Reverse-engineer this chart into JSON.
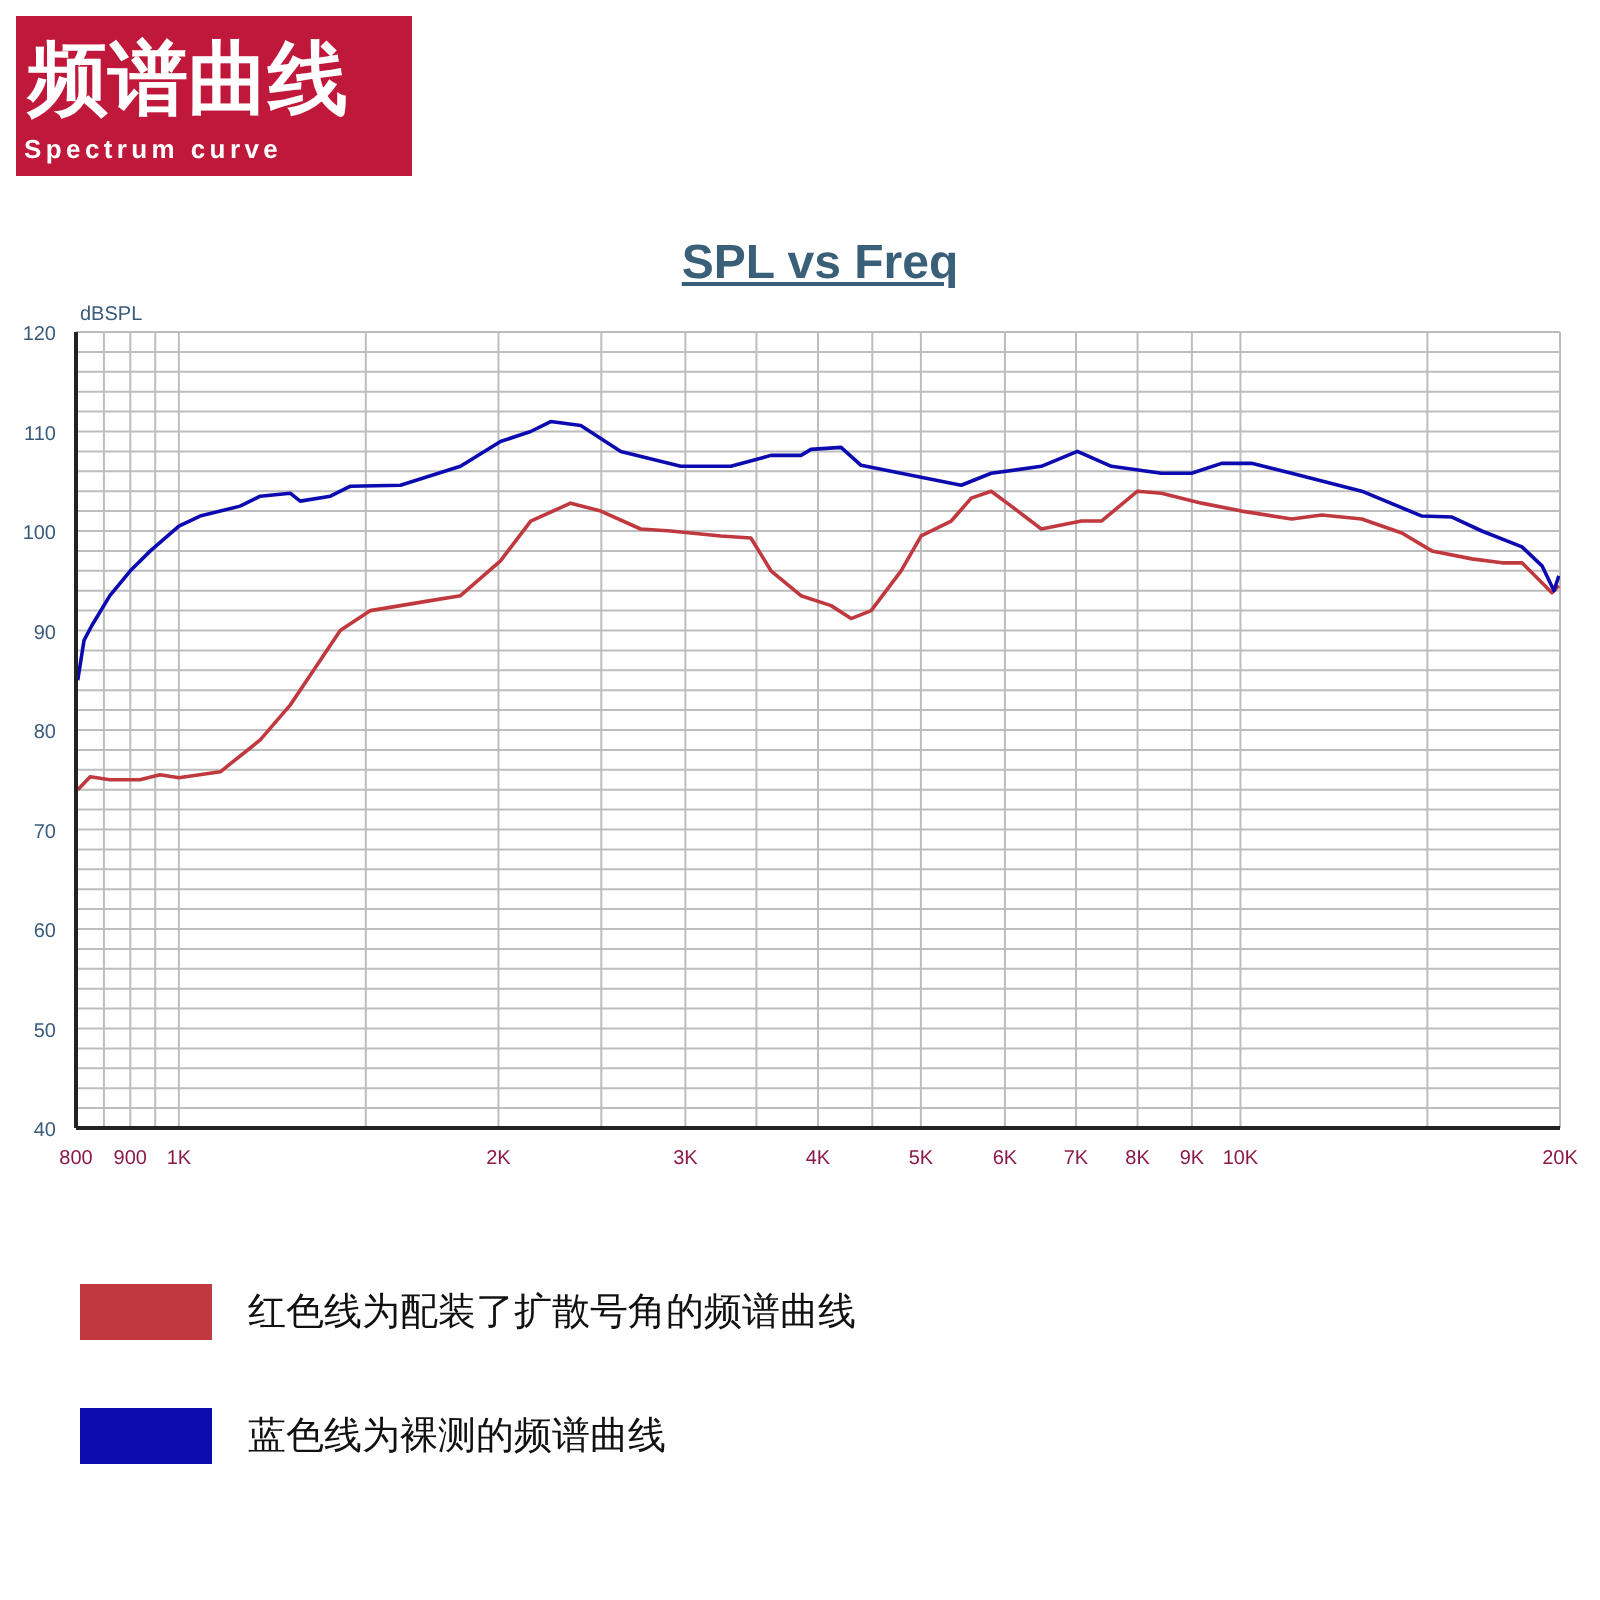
{
  "chart_data": {
    "type": "line",
    "title": "SPL vs Freq",
    "ylabel": "dBSPL",
    "annotations": [
      "频谱曲线",
      "Spectrum curve"
    ],
    "log": "x",
    "grid": true,
    "legend": "bottom",
    "marker": "none",
    "line_style": "solid",
    "xlim": [
      800,
      20000
    ],
    "xticks": [
      800,
      {
        "value": 850,
        "label": null
      },
      {
        "value": 900,
        "label": "900"
      },
      {
        "value": 950,
        "label": null
      },
      {
        "value": 1000,
        "label": "1K"
      },
      {
        "value": 1500,
        "label": null
      },
      {
        "value": 2000,
        "label": "2K"
      },
      {
        "value": 2500,
        "label": null
      },
      {
        "value": 3000,
        "label": "3K"
      },
      {
        "value": 3500,
        "label": null
      },
      {
        "value": 4000,
        "label": "4K"
      },
      {
        "value": 4500,
        "label": null
      },
      {
        "value": 5000,
        "label": "5K"
      },
      {
        "value": 6000,
        "label": "6K"
      },
      {
        "value": 7000,
        "label": "7K"
      },
      {
        "value": 8000,
        "label": "8K"
      },
      {
        "value": 9000,
        "label": "9K"
      },
      {
        "value": 10000,
        "label": "10K"
      },
      {
        "value": 15000,
        "label": null
      },
      {
        "value": 20000,
        "label": "20K"
      }
    ],
    "ylim": [
      40,
      120
    ],
    "yticks": [
      40,
      {
        "value": 42,
        "label": null
      },
      {
        "value": 44,
        "label": null
      },
      {
        "value": 46,
        "label": null
      },
      {
        "value": 48,
        "label": null
      },
      50,
      {
        "value": 52,
        "label": null
      },
      {
        "value": 54,
        "label": null
      },
      {
        "value": 56,
        "label": null
      },
      {
        "value": 58,
        "label": null
      },
      60,
      {
        "value": 62,
        "label": null
      },
      {
        "value": 64,
        "label": null
      },
      {
        "value": 66,
        "label": null
      },
      {
        "value": 68,
        "label": null
      },
      70,
      {
        "value": 72,
        "label": null
      },
      {
        "value": 74,
        "label": null
      },
      {
        "value": 76,
        "label": null
      },
      {
        "value": 78,
        "label": null
      },
      80,
      {
        "value": 82,
        "label": null
      },
      {
        "value": 84,
        "label": null
      },
      {
        "value": 86,
        "label": null
      },
      {
        "value": 88,
        "label": null
      },
      90,
      {
        "value": 92,
        "label": null
      },
      {
        "value": 94,
        "label": null
      },
      {
        "value": 96,
        "label": null
      },
      {
        "value": 98,
        "label": null
      },
      100,
      {
        "value": 102,
        "label": null
      },
      {
        "value": 104,
        "label": null
      },
      {
        "value": 106,
        "label": null
      },
      {
        "value": 108,
        "label": null
      },
      110,
      {
        "value": 112,
        "label": null
      },
      {
        "value": 114,
        "label": null
      },
      {
        "value": 116,
        "label": null
      },
      {
        "value": 118,
        "label": null
      },
      120
    ],
    "series": [
      {
        "name": "红色线为配装了扩散号角的频谱曲线",
        "color": "#c0393f",
        "x": [
          803,
          825,
          861,
          919,
          960,
          1000,
          1094,
          1193,
          1273,
          1359,
          1419,
          1515,
          1617,
          1726,
          1842,
          2009,
          2145,
          2339,
          2497,
          2723,
          2906,
          3240,
          3458,
          3612,
          3855,
          4115,
          4298,
          4489,
          4790,
          5003,
          5340,
          5577,
          5824,
          6083,
          6493,
          7082,
          7397,
          8000,
          8426,
          9191,
          10025,
          11175,
          11929,
          13011,
          14192,
          15146,
          16521,
          17633,
          18418,
          19654,
          19950
        ],
        "values": [
          74,
          75.3,
          75,
          75,
          75.5,
          75.2,
          75.8,
          79,
          82.5,
          87,
          90,
          92,
          92.5,
          93,
          93.5,
          97,
          101,
          102.8,
          102,
          100.2,
          100,
          99.5,
          99.3,
          96,
          93.5,
          92.5,
          91.2,
          92,
          96,
          99.5,
          101,
          103.3,
          104,
          102.5,
          100.2,
          101,
          101,
          104,
          103.8,
          102.8,
          102,
          101.2,
          101.6,
          101.2,
          99.8,
          98,
          97.2,
          96.8,
          96.8,
          93.8,
          94.5
        ]
      },
      {
        "name": "蓝色线为裸测的频谱曲线",
        "color": "#0b0bb0",
        "x": [
          803,
          814,
          828,
          861,
          900,
          940,
          1000,
          1047,
          1142,
          1193,
          1273,
          1301,
          1389,
          1451,
          1617,
          1842,
          2009,
          2145,
          2240,
          2391,
          2608,
          2970,
          3311,
          3612,
          3855,
          3940,
          4205,
          4392,
          4790,
          5457,
          5824,
          6493,
          7021,
          7559,
          8426,
          8994,
          9599,
          10245,
          11175,
          13011,
          14824,
          15823,
          16881,
          18418,
          19235,
          19740,
          19950
        ],
        "values": [
          85,
          89,
          90.5,
          93.5,
          96,
          98,
          100.5,
          101.5,
          102.5,
          103.5,
          103.8,
          103,
          103.5,
          104.5,
          104.6,
          106.5,
          109,
          110,
          111,
          110.6,
          108,
          106.5,
          106.5,
          107.6,
          107.6,
          108.2,
          108.4,
          106.6,
          105.8,
          104.6,
          105.8,
          106.5,
          108,
          106.5,
          105.8,
          105.8,
          106.8,
          106.8,
          105.8,
          104,
          101.5,
          101.4,
          100,
          98.4,
          96.5,
          94,
          95.5
        ]
      }
    ]
  }
}
